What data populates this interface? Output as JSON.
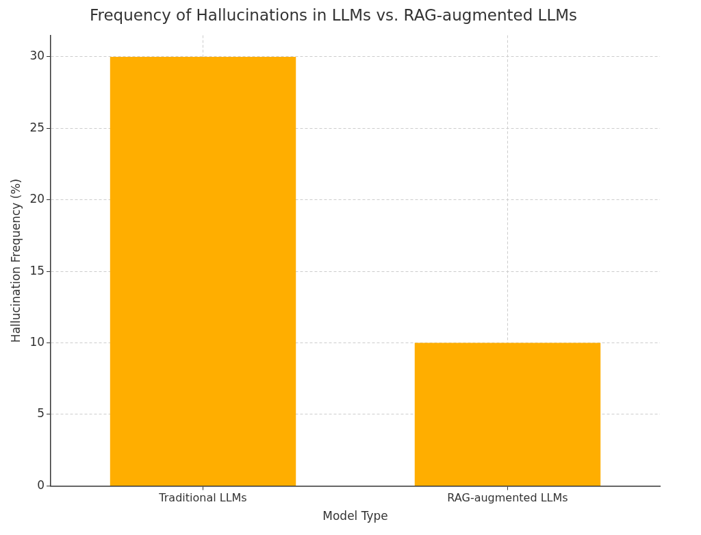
{
  "chart_data": {
    "type": "bar",
    "title": "Frequency of Hallucinations in LLMs vs. RAG-augmented LLMs",
    "x_label": "Model Type",
    "y_label": "Hallucination Frequency (%)",
    "categories": [
      "Traditional LLMs",
      "RAG-augmented LLMs"
    ],
    "values": [
      30,
      10
    ],
    "color": "#ffae00",
    "ylim": [
      0,
      31.5
    ],
    "yticks": [
      0,
      5,
      10,
      15,
      20,
      25,
      30
    ],
    "grid": true
  }
}
